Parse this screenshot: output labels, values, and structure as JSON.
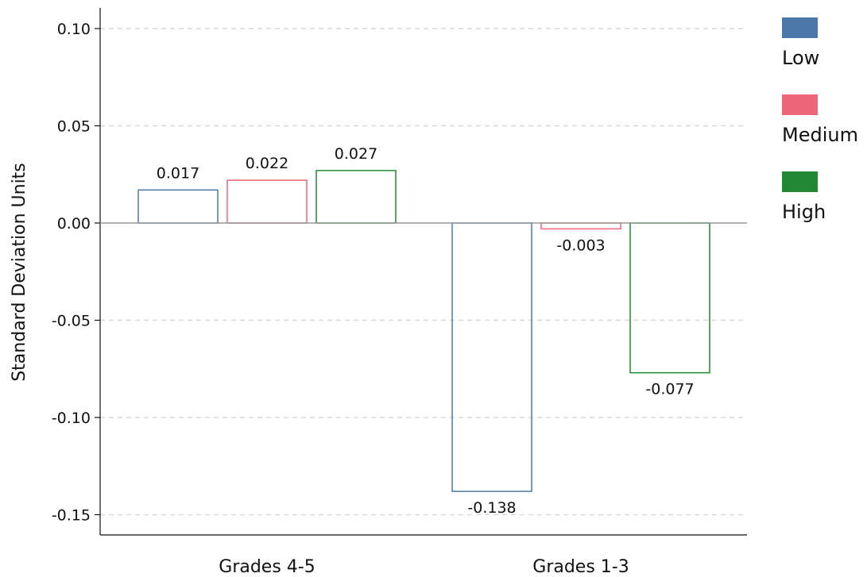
{
  "chart_data": {
    "type": "bar",
    "categories": [
      "Grades 4-5",
      "Grades 1-3"
    ],
    "series": [
      {
        "name": "Low",
        "values": [
          0.017,
          -0.138
        ],
        "color": "#4a78a8"
      },
      {
        "name": "Medium",
        "values": [
          0.022,
          -0.003
        ],
        "color": "#ee6677"
      },
      {
        "name": "High",
        "values": [
          0.027,
          -0.077
        ],
        "color": "#228833"
      }
    ],
    "data_labels": [
      [
        "0.017",
        "-0.138"
      ],
      [
        "0.022",
        "-0.003"
      ],
      [
        "0.027",
        "-0.077"
      ]
    ],
    "ylabel": "Standard Deviation Units",
    "xlabel": "",
    "ylim": [
      -0.165,
      0.11
    ],
    "yticks": [
      0.1,
      0.05,
      0.0,
      -0.05,
      -0.1,
      -0.15
    ],
    "ytick_labels": [
      "0.10",
      "0.05",
      "0.00",
      "-0.05",
      "-0.10",
      "-0.15"
    ],
    "grid": true,
    "legend_position": "right",
    "bar_style": "outlined"
  }
}
